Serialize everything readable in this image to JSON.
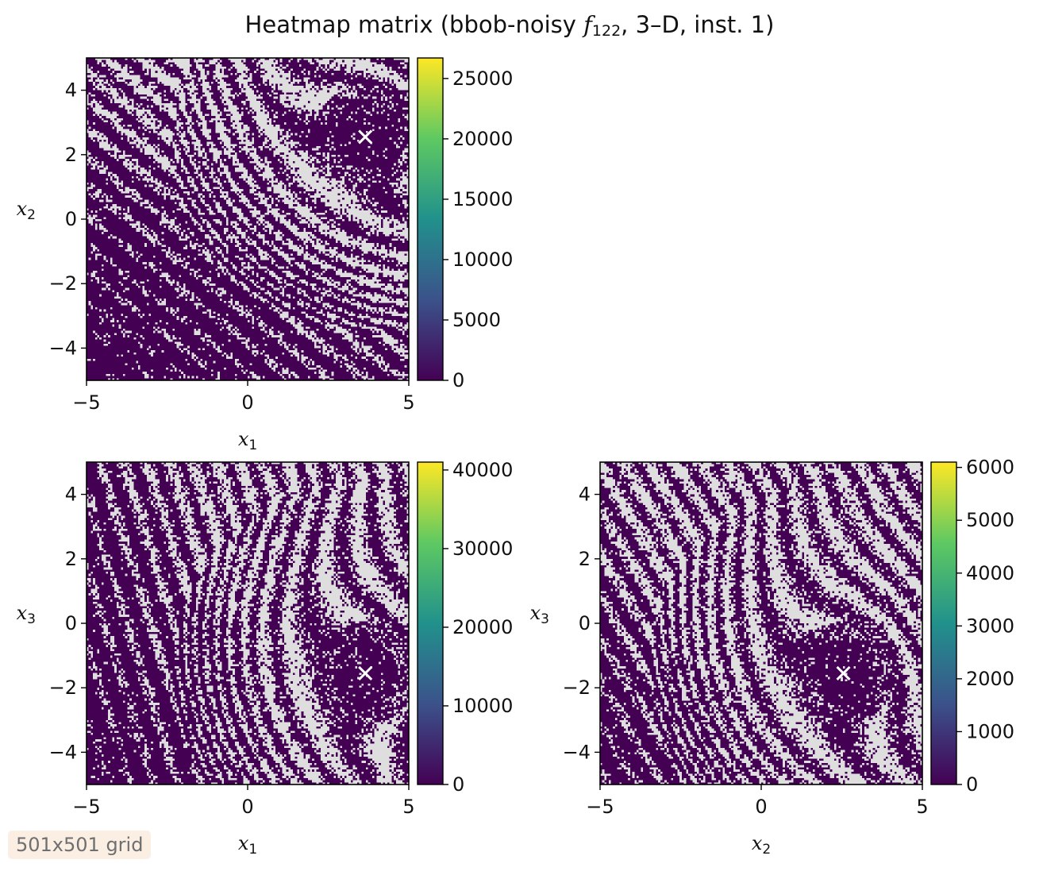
{
  "title": {
    "prefix": "Heatmap matrix (bbob-noisy ",
    "func_symbol": "f",
    "func_subscript": "122",
    "suffix": ", 3–D, inst. 1)"
  },
  "badge": "501x501 grid",
  "colors": {
    "background_pattern": "#dedede",
    "low_value": "#440154",
    "colormap": [
      "#440154",
      "#3b528b",
      "#21918c",
      "#5ec962",
      "#fde725"
    ],
    "marker": "#ffffff"
  },
  "chart_data": [
    {
      "type": "heatmap",
      "panel": "x1-x2",
      "xlabel": "x",
      "xlabel_sub": "1",
      "ylabel": "x",
      "ylabel_sub": "2",
      "xlim": [
        -5,
        5
      ],
      "ylim": [
        -5,
        5
      ],
      "x_ticks": [
        -5,
        0,
        5
      ],
      "x_tick_labels": [
        "−5",
        "0",
        "5"
      ],
      "y_ticks": [
        -4,
        -2,
        0,
        2,
        4
      ],
      "y_tick_labels": [
        "−4",
        "−2",
        "0",
        "2",
        "4"
      ],
      "optimum": [
        3.65,
        2.55
      ],
      "pattern": {
        "x_dim": 0,
        "y_dim": 1,
        "cx": 3.65,
        "cy": 2.55,
        "band_dir": [
          0.62,
          0.78
        ]
      },
      "colorbar": {
        "vmin": 0,
        "vmax": 26700,
        "ticks": [
          0,
          5000,
          10000,
          15000,
          20000,
          25000
        ],
        "tick_labels": [
          "0",
          "5000",
          "10000",
          "15000",
          "20000",
          "25000"
        ]
      }
    },
    {
      "type": "heatmap",
      "panel": "x1-x3",
      "xlabel": "x",
      "xlabel_sub": "1",
      "ylabel": "x",
      "ylabel_sub": "3",
      "xlim": [
        -5,
        5
      ],
      "ylim": [
        -5,
        5
      ],
      "x_ticks": [
        -5,
        0,
        5
      ],
      "x_tick_labels": [
        "−5",
        "0",
        "5"
      ],
      "y_ticks": [
        -4,
        -2,
        0,
        2,
        4
      ],
      "y_tick_labels": [
        "−4",
        "−2",
        "0",
        "2",
        "4"
      ],
      "optimum": [
        3.65,
        -1.55
      ],
      "pattern": {
        "x_dim": 0,
        "y_dim": 2,
        "cx": 3.65,
        "cy": -1.55,
        "band_dir": [
          0.95,
          0.3
        ]
      },
      "colorbar": {
        "vmin": 0,
        "vmax": 41000,
        "ticks": [
          0,
          10000,
          20000,
          30000,
          40000
        ],
        "tick_labels": [
          "0",
          "10000",
          "20000",
          "30000",
          "40000"
        ]
      }
    },
    {
      "type": "heatmap",
      "panel": "x2-x3",
      "xlabel": "x",
      "xlabel_sub": "2",
      "ylabel": "x",
      "ylabel_sub": "3",
      "xlim": [
        -5,
        5
      ],
      "ylim": [
        -5,
        5
      ],
      "x_ticks": [
        -5,
        0,
        5
      ],
      "x_tick_labels": [
        "−5",
        "0",
        "5"
      ],
      "y_ticks": [
        -4,
        -2,
        0,
        2,
        4
      ],
      "y_tick_labels": [
        "−4",
        "−2",
        "0",
        "2",
        "4"
      ],
      "optimum": [
        2.55,
        -1.55
      ],
      "pattern": {
        "x_dim": 1,
        "y_dim": 2,
        "cx": 2.55,
        "cy": -1.55,
        "band_dir": [
          0.85,
          0.52
        ]
      },
      "colorbar": {
        "vmin": 0,
        "vmax": 6100,
        "ticks": [
          0,
          1000,
          2000,
          3000,
          4000,
          5000,
          6000
        ],
        "tick_labels": [
          "0",
          "1000",
          "2000",
          "3000",
          "4000",
          "5000",
          "6000"
        ]
      }
    }
  ]
}
